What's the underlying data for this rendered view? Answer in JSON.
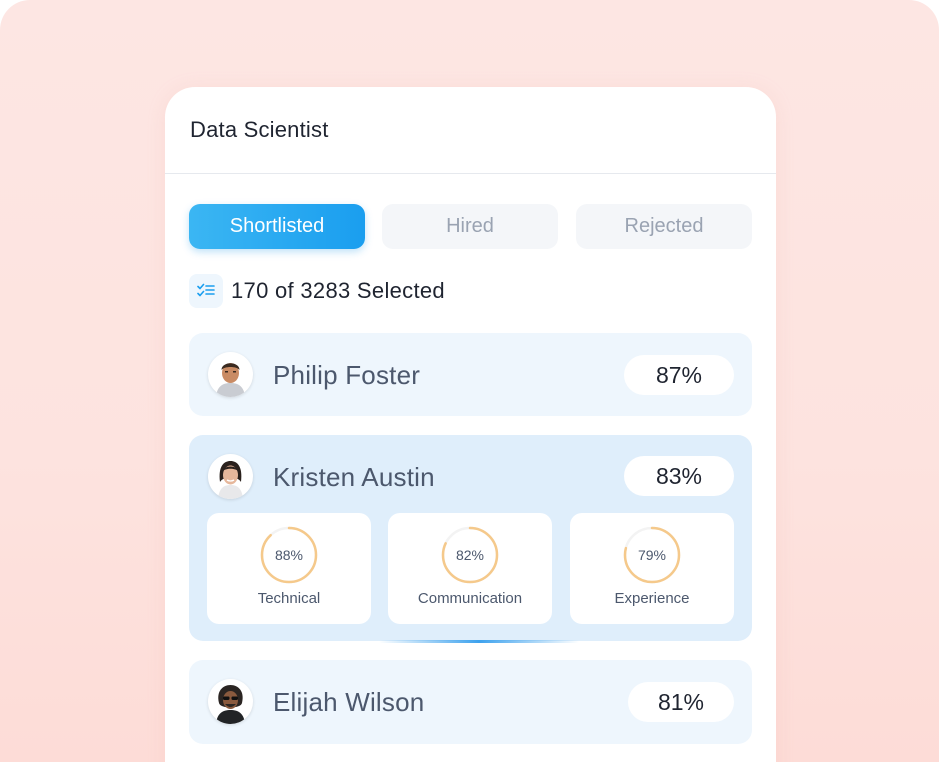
{
  "job": {
    "title": "Data Scientist"
  },
  "tabs": [
    {
      "label": "Shortlisted",
      "active": true
    },
    {
      "label": "Hired",
      "active": false
    },
    {
      "label": "Rejected",
      "active": false
    }
  ],
  "selection": {
    "text": "170 of 3283 Selected",
    "icon": "checklist-icon"
  },
  "candidates": [
    {
      "name": "Philip Foster",
      "score": "87%",
      "avatar_icon": "avatar-philip"
    },
    {
      "name": "Kristen Austin",
      "score": "83%",
      "avatar_icon": "avatar-kristen",
      "metrics": [
        {
          "value": "88%",
          "percent": 88,
          "label": "Technical"
        },
        {
          "value": "82%",
          "percent": 82,
          "label": "Communication"
        },
        {
          "value": "79%",
          "percent": 79,
          "label": "Experience"
        }
      ]
    },
    {
      "name": "Elijah Wilson",
      "score": "81%",
      "avatar_icon": "avatar-elijah"
    }
  ],
  "colors": {
    "accent": "#1a9eef",
    "ring": "#f5c98b",
    "ring_track": "#f3f3f3",
    "card_bg": "#eef6fd",
    "card_bg_expanded": "#dfeefb"
  }
}
